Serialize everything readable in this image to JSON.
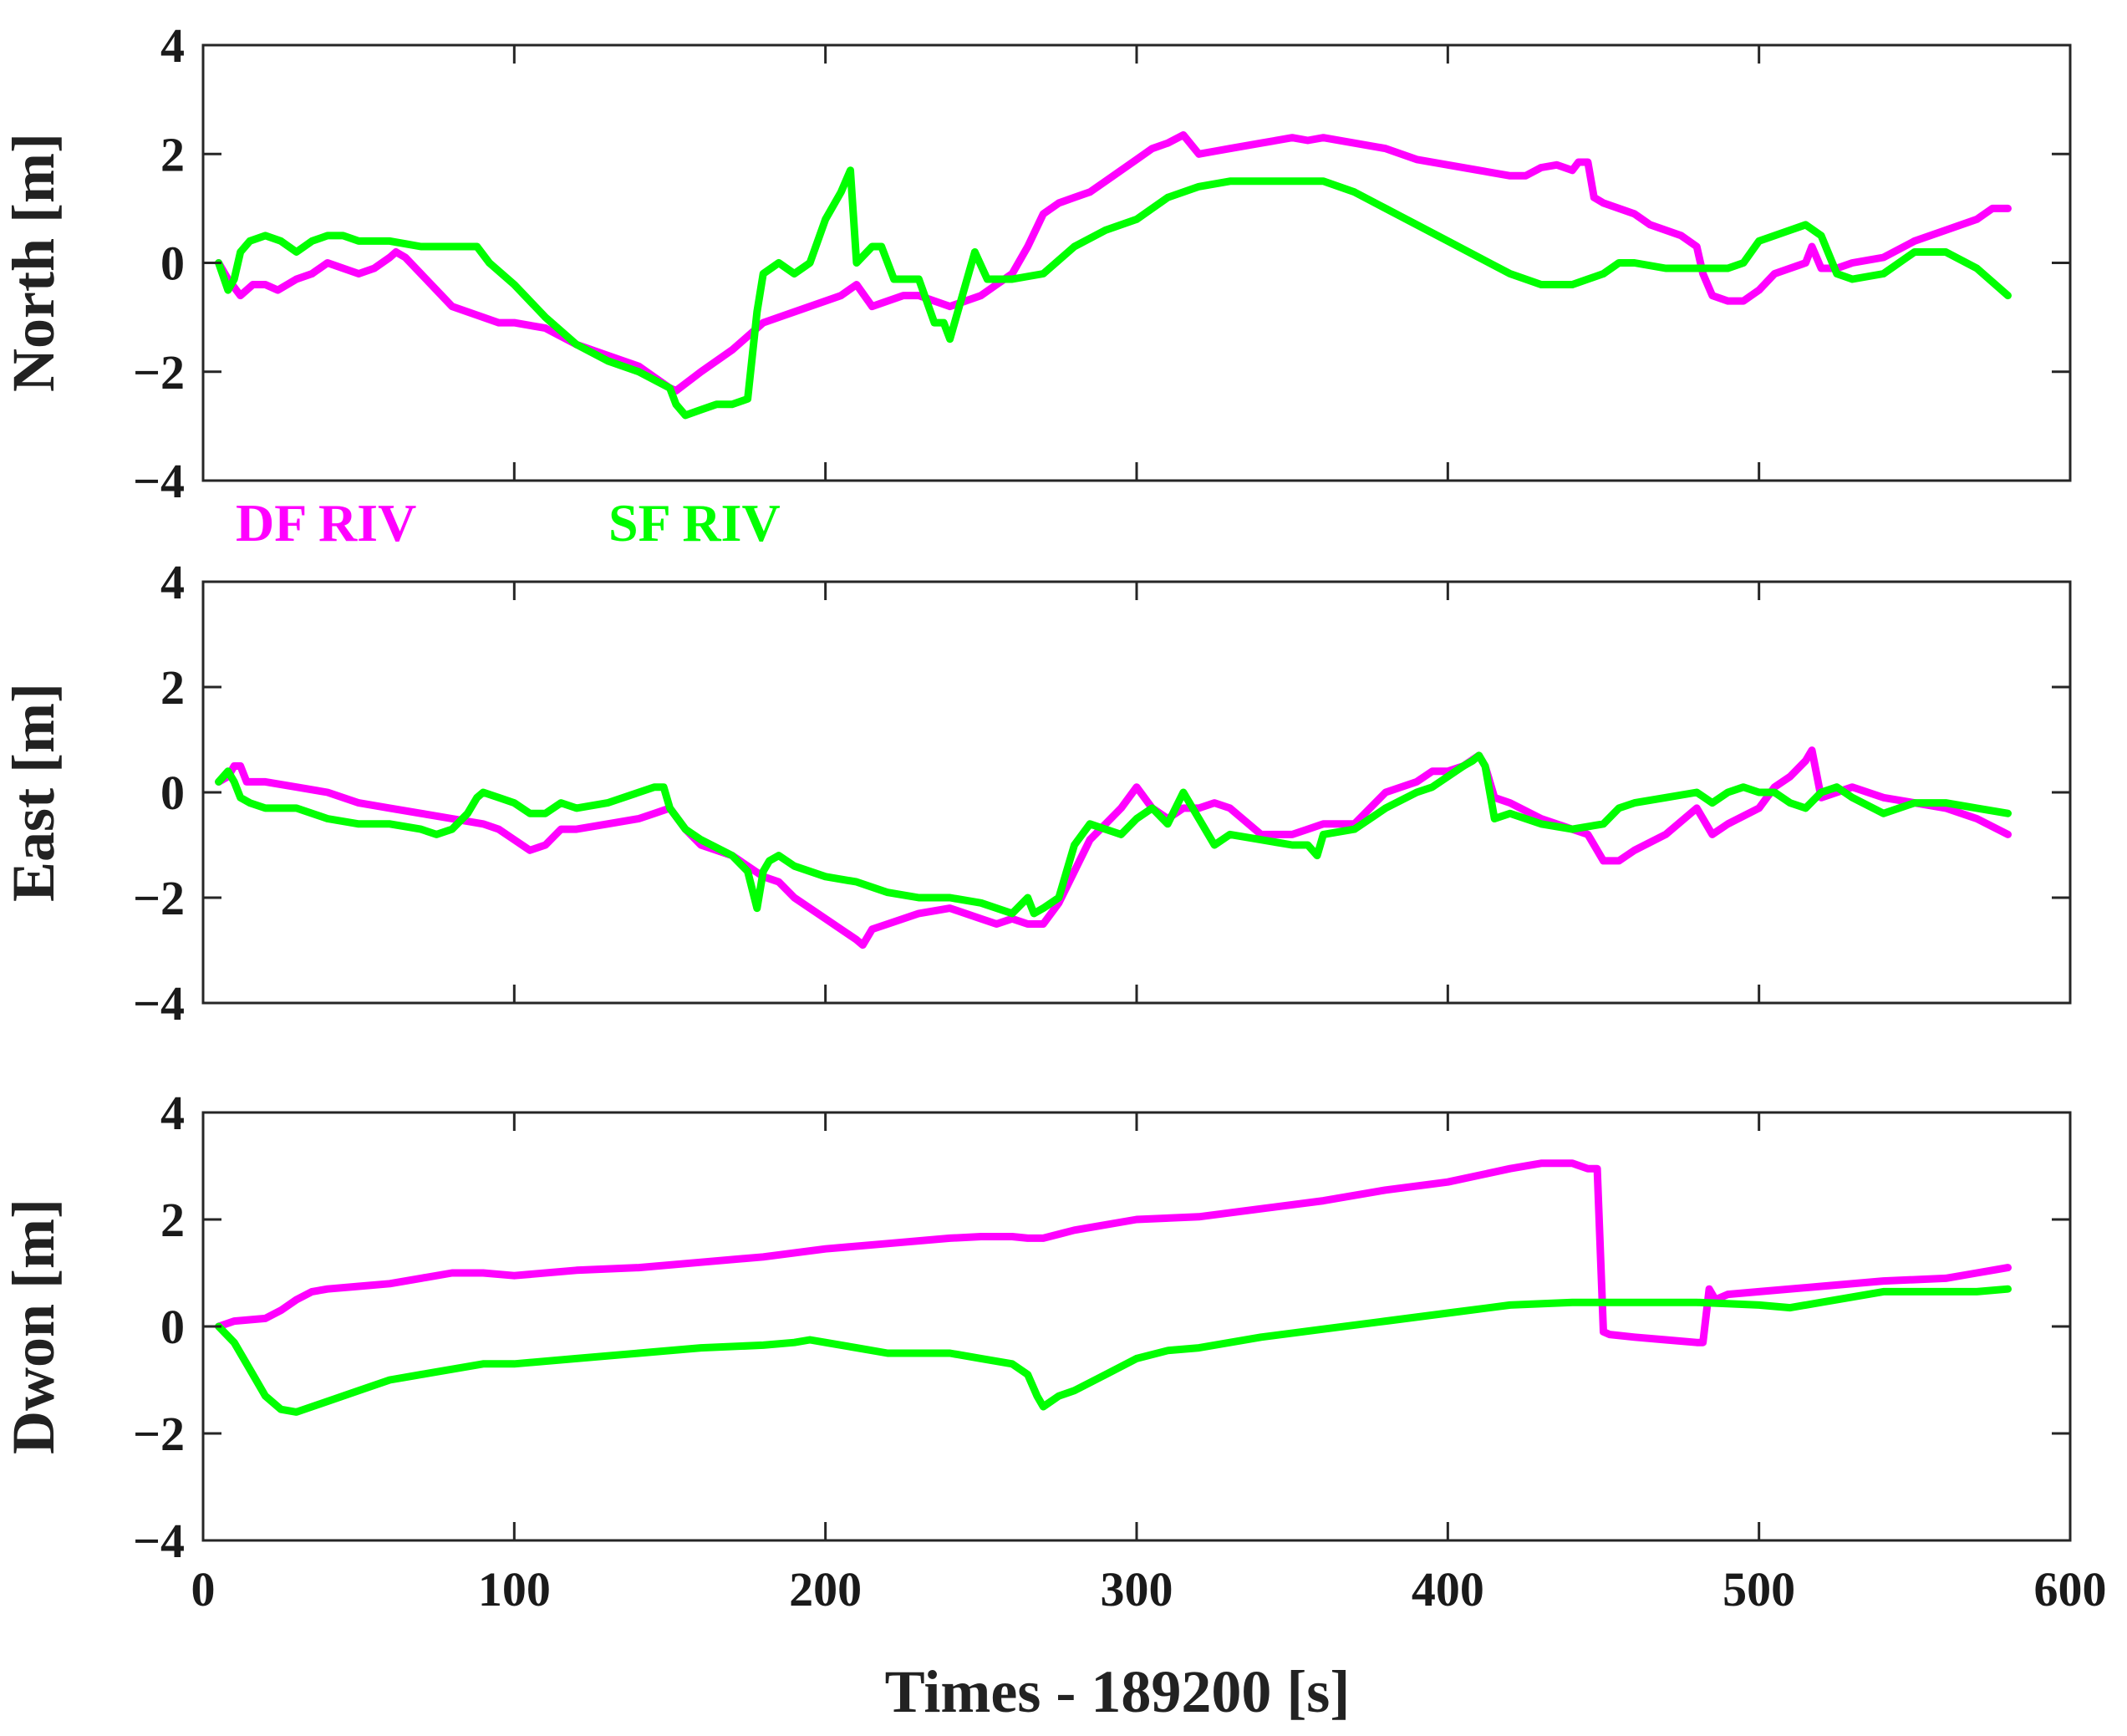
{
  "chart_data": [
    {
      "type": "line",
      "ylabel": "North [m]",
      "xlim": [
        0,
        600
      ],
      "ylim": [
        -4,
        4
      ],
      "yticks": [
        {
          "value": -4,
          "label": "−4"
        },
        {
          "value": -2,
          "label": "−2"
        },
        {
          "value": 0,
          "label": "0"
        },
        {
          "value": 2,
          "label": "2"
        },
        {
          "value": 4,
          "label": "4"
        }
      ],
      "series": [
        {
          "name": "DF RIV",
          "color": "#ff00ff",
          "x": [
            5,
            8,
            12,
            16,
            20,
            24,
            30,
            35,
            40,
            45,
            50,
            55,
            60,
            62,
            65,
            70,
            75,
            80,
            85,
            90,
            95,
            100,
            110,
            120,
            130,
            140,
            145,
            150,
            152,
            160,
            170,
            180,
            190,
            200,
            205,
            210,
            215,
            220,
            225,
            230,
            235,
            240,
            245,
            250,
            255,
            260,
            265,
            270,
            275,
            280,
            285,
            290,
            295,
            300,
            305,
            310,
            315,
            320,
            325,
            330,
            340,
            350,
            355,
            360,
            370,
            380,
            390,
            400,
            410,
            420,
            425,
            430,
            435,
            440,
            442,
            445,
            447,
            450,
            455,
            460,
            465,
            470,
            475,
            480,
            482,
            485,
            490,
            495,
            500,
            505,
            510,
            515,
            517,
            520,
            525,
            530,
            540,
            550,
            560,
            570,
            575,
            580
          ],
          "y": [
            0.0,
            -0.3,
            -0.6,
            -0.4,
            -0.4,
            -0.5,
            -0.3,
            -0.2,
            0.0,
            -0.1,
            -0.2,
            -0.1,
            0.1,
            0.2,
            0.1,
            -0.2,
            -0.5,
            -0.8,
            -0.9,
            -1.0,
            -1.1,
            -1.1,
            -1.2,
            -1.5,
            -1.7,
            -1.9,
            -2.1,
            -2.3,
            -2.35,
            -2.0,
            -1.6,
            -1.1,
            -0.9,
            -0.7,
            -0.6,
            -0.4,
            -0.8,
            -0.7,
            -0.6,
            -0.6,
            -0.7,
            -0.8,
            -0.7,
            -0.6,
            -0.4,
            -0.2,
            0.3,
            0.9,
            1.1,
            1.2,
            1.3,
            1.5,
            1.7,
            1.9,
            2.1,
            2.2,
            2.35,
            2.0,
            2.05,
            2.1,
            2.2,
            2.3,
            2.25,
            2.3,
            2.2,
            2.1,
            1.9,
            1.8,
            1.7,
            1.6,
            1.6,
            1.75,
            1.8,
            1.7,
            1.85,
            1.85,
            1.2,
            1.1,
            1.0,
            0.9,
            0.7,
            0.6,
            0.5,
            0.3,
            -0.2,
            -0.6,
            -0.7,
            -0.7,
            -0.5,
            -0.2,
            -0.1,
            0.0,
            0.3,
            -0.1,
            -0.1,
            0.0,
            0.1,
            0.4,
            0.6,
            0.8,
            1.0,
            1.0
          ]
        },
        {
          "name": "SF RIV",
          "color": "#00ff00",
          "x": [
            5,
            8,
            10,
            12,
            15,
            20,
            25,
            30,
            35,
            40,
            45,
            50,
            55,
            60,
            65,
            70,
            75,
            80,
            85,
            88,
            92,
            100,
            110,
            120,
            130,
            140,
            150,
            152,
            155,
            160,
            165,
            170,
            175,
            178,
            180,
            185,
            190,
            195,
            200,
            205,
            208,
            210,
            215,
            218,
            222,
            230,
            235,
            238,
            240,
            244,
            248,
            252,
            260,
            270,
            280,
            290,
            300,
            310,
            320,
            330,
            340,
            350,
            360,
            370,
            380,
            390,
            400,
            410,
            420,
            430,
            440,
            445,
            450,
            455,
            460,
            470,
            480,
            490,
            495,
            500,
            505,
            510,
            515,
            520,
            525,
            530,
            540,
            550,
            560,
            570,
            580
          ],
          "y": [
            0.0,
            -0.5,
            -0.3,
            0.2,
            0.4,
            0.5,
            0.4,
            0.2,
            0.4,
            0.5,
            0.5,
            0.4,
            0.4,
            0.4,
            0.35,
            0.3,
            0.3,
            0.3,
            0.3,
            0.3,
            0.0,
            -0.4,
            -1.0,
            -1.5,
            -1.8,
            -2.0,
            -2.3,
            -2.6,
            -2.8,
            -2.7,
            -2.6,
            -2.6,
            -2.5,
            -0.9,
            -0.2,
            0.0,
            -0.2,
            0.0,
            0.8,
            1.3,
            1.7,
            0.0,
            0.3,
            0.3,
            -0.3,
            -0.3,
            -1.1,
            -1.1,
            -1.4,
            -0.6,
            0.2,
            -0.3,
            -0.3,
            -0.2,
            0.3,
            0.6,
            0.8,
            1.2,
            1.4,
            1.5,
            1.5,
            1.5,
            1.5,
            1.3,
            1.0,
            0.7,
            0.4,
            0.1,
            -0.2,
            -0.4,
            -0.4,
            -0.3,
            -0.2,
            0.0,
            0.0,
            -0.1,
            -0.1,
            -0.1,
            0.0,
            0.4,
            0.5,
            0.6,
            0.7,
            0.5,
            -0.2,
            -0.3,
            -0.2,
            0.2,
            0.2,
            -0.1,
            -0.6
          ]
        }
      ]
    },
    {
      "type": "line",
      "ylabel": "East [m]",
      "xlim": [
        0,
        600
      ],
      "ylim": [
        -4,
        4
      ],
      "yticks": [
        {
          "value": -4,
          "label": "−4"
        },
        {
          "value": -2,
          "label": "−2"
        },
        {
          "value": 0,
          "label": "0"
        },
        {
          "value": 2,
          "label": "2"
        },
        {
          "value": 4,
          "label": "4"
        }
      ],
      "series": [
        {
          "name": "DF RIV",
          "color": "#ff00ff",
          "x": [
            5,
            8,
            10,
            12,
            14,
            20,
            30,
            40,
            50,
            60,
            70,
            80,
            90,
            95,
            100,
            105,
            110,
            115,
            120,
            130,
            140,
            145,
            150,
            155,
            160,
            170,
            180,
            185,
            190,
            200,
            210,
            212,
            215,
            220,
            230,
            240,
            250,
            255,
            260,
            265,
            270,
            275,
            280,
            285,
            290,
            295,
            300,
            305,
            310,
            315,
            320,
            325,
            330,
            340,
            345,
            350,
            355,
            360,
            370,
            380,
            390,
            395,
            400,
            405,
            410,
            412,
            415,
            420,
            430,
            440,
            445,
            450,
            455,
            460,
            470,
            480,
            485,
            490,
            500,
            505,
            510,
            515,
            517,
            520,
            530,
            540,
            550,
            560,
            570,
            580
          ],
          "y": [
            0.2,
            0.3,
            0.5,
            0.5,
            0.2,
            0.2,
            0.1,
            0.0,
            -0.2,
            -0.3,
            -0.4,
            -0.5,
            -0.6,
            -0.7,
            -0.9,
            -1.1,
            -1.0,
            -0.7,
            -0.7,
            -0.6,
            -0.5,
            -0.4,
            -0.3,
            -0.7,
            -1.0,
            -1.2,
            -1.6,
            -1.7,
            -2.0,
            -2.4,
            -2.8,
            -2.9,
            -2.6,
            -2.5,
            -2.3,
            -2.2,
            -2.4,
            -2.5,
            -2.4,
            -2.5,
            -2.5,
            -2.1,
            -1.5,
            -0.9,
            -0.6,
            -0.3,
            0.1,
            -0.3,
            -0.5,
            -0.3,
            -0.3,
            -0.2,
            -0.3,
            -0.8,
            -0.8,
            -0.8,
            -0.7,
            -0.6,
            -0.6,
            0.0,
            0.2,
            0.4,
            0.4,
            0.5,
            0.7,
            0.5,
            -0.1,
            -0.2,
            -0.5,
            -0.7,
            -0.8,
            -1.3,
            -1.3,
            -1.1,
            -0.8,
            -0.3,
            -0.8,
            -0.6,
            -0.3,
            0.1,
            0.3,
            0.6,
            0.8,
            -0.1,
            0.1,
            -0.1,
            -0.2,
            -0.3,
            -0.5,
            -0.8
          ]
        },
        {
          "name": "SF RIV",
          "color": "#00ff00",
          "x": [
            5,
            8,
            10,
            12,
            15,
            20,
            30,
            40,
            50,
            60,
            70,
            75,
            80,
            85,
            88,
            90,
            95,
            100,
            105,
            110,
            115,
            120,
            130,
            140,
            145,
            148,
            150,
            155,
            160,
            170,
            175,
            178,
            180,
            182,
            185,
            190,
            200,
            210,
            220,
            230,
            240,
            250,
            260,
            265,
            267,
            270,
            275,
            280,
            285,
            290,
            295,
            300,
            305,
            310,
            315,
            320,
            325,
            330,
            340,
            350,
            355,
            358,
            360,
            370,
            380,
            390,
            395,
            400,
            405,
            408,
            410,
            412,
            415,
            420,
            430,
            440,
            450,
            455,
            460,
            470,
            480,
            485,
            490,
            495,
            500,
            505,
            510,
            515,
            520,
            525,
            530,
            540,
            550,
            560,
            570,
            580
          ],
          "y": [
            0.2,
            0.4,
            0.2,
            -0.1,
            -0.2,
            -0.3,
            -0.3,
            -0.5,
            -0.6,
            -0.6,
            -0.7,
            -0.8,
            -0.7,
            -0.4,
            -0.1,
            0.0,
            -0.1,
            -0.2,
            -0.4,
            -0.4,
            -0.2,
            -0.3,
            -0.2,
            0.0,
            0.1,
            0.1,
            -0.3,
            -0.7,
            -0.9,
            -1.2,
            -1.5,
            -2.2,
            -1.5,
            -1.3,
            -1.2,
            -1.4,
            -1.6,
            -1.7,
            -1.9,
            -2.0,
            -2.0,
            -2.1,
            -2.3,
            -2.0,
            -2.3,
            -2.2,
            -2.0,
            -1.0,
            -0.6,
            -0.7,
            -0.8,
            -0.5,
            -0.3,
            -0.6,
            0.0,
            -0.5,
            -1.0,
            -0.8,
            -0.9,
            -1.0,
            -1.0,
            -1.2,
            -0.8,
            -0.7,
            -0.3,
            0.0,
            0.1,
            0.3,
            0.5,
            0.6,
            0.7,
            0.5,
            -0.5,
            -0.4,
            -0.6,
            -0.7,
            -0.6,
            -0.3,
            -0.2,
            -0.1,
            0.0,
            -0.2,
            0.0,
            0.1,
            0.0,
            0.0,
            -0.2,
            -0.3,
            0.0,
            0.1,
            -0.1,
            -0.4,
            -0.2,
            -0.2,
            -0.3,
            -0.4
          ]
        }
      ]
    },
    {
      "type": "line",
      "ylabel": "Dwon [m]",
      "xlabel": "Times - 189200 [s]",
      "xlim": [
        0,
        600
      ],
      "ylim": [
        -4,
        4
      ],
      "xticks": [
        {
          "value": 0,
          "label": "0"
        },
        {
          "value": 100,
          "label": "100"
        },
        {
          "value": 200,
          "label": "200"
        },
        {
          "value": 300,
          "label": "300"
        },
        {
          "value": 400,
          "label": "400"
        },
        {
          "value": 500,
          "label": "500"
        },
        {
          "value": 600,
          "label": "600"
        }
      ],
      "yticks": [
        {
          "value": -4,
          "label": "−4"
        },
        {
          "value": -2,
          "label": "−2"
        },
        {
          "value": 0,
          "label": "0"
        },
        {
          "value": 2,
          "label": "2"
        },
        {
          "value": 4,
          "label": "4"
        }
      ],
      "series": [
        {
          "name": "DF RIV",
          "color": "#ff00ff",
          "x": [
            5,
            10,
            20,
            25,
            30,
            35,
            40,
            50,
            60,
            70,
            80,
            90,
            100,
            120,
            140,
            160,
            180,
            200,
            220,
            240,
            250,
            260,
            265,
            270,
            280,
            300,
            320,
            340,
            360,
            380,
            400,
            420,
            430,
            440,
            445,
            448,
            450,
            452,
            460,
            470,
            480,
            482,
            484,
            486,
            490,
            500,
            520,
            540,
            560,
            570,
            580
          ],
          "y": [
            0.0,
            0.1,
            0.15,
            0.3,
            0.5,
            0.65,
            0.7,
            0.75,
            0.8,
            0.9,
            1.0,
            1.0,
            0.95,
            1.05,
            1.1,
            1.2,
            1.3,
            1.45,
            1.55,
            1.65,
            1.68,
            1.68,
            1.65,
            1.65,
            1.8,
            2.0,
            2.05,
            2.2,
            2.35,
            2.55,
            2.7,
            2.95,
            3.05,
            3.05,
            2.95,
            2.95,
            -0.1,
            -0.15,
            -0.2,
            -0.25,
            -0.3,
            -0.3,
            0.7,
            0.5,
            0.6,
            0.65,
            0.75,
            0.85,
            0.9,
            1.0,
            1.1
          ]
        },
        {
          "name": "SF RIV",
          "color": "#00ff00",
          "x": [
            5,
            10,
            15,
            20,
            25,
            30,
            35,
            40,
            50,
            60,
            70,
            80,
            90,
            100,
            120,
            140,
            160,
            180,
            190,
            195,
            200,
            210,
            220,
            230,
            240,
            250,
            260,
            265,
            268,
            270,
            275,
            280,
            290,
            300,
            310,
            320,
            330,
            340,
            360,
            380,
            400,
            420,
            440,
            460,
            480,
            500,
            510,
            520,
            530,
            540,
            550,
            560,
            570,
            580
          ],
          "y": [
            0.0,
            -0.3,
            -0.8,
            -1.3,
            -1.55,
            -1.6,
            -1.5,
            -1.4,
            -1.2,
            -1.0,
            -0.9,
            -0.8,
            -0.7,
            -0.7,
            -0.6,
            -0.5,
            -0.4,
            -0.35,
            -0.3,
            -0.25,
            -0.3,
            -0.4,
            -0.5,
            -0.5,
            -0.5,
            -0.6,
            -0.7,
            -0.9,
            -1.3,
            -1.5,
            -1.3,
            -1.2,
            -0.9,
            -0.6,
            -0.45,
            -0.4,
            -0.3,
            -0.2,
            -0.05,
            0.1,
            0.25,
            0.4,
            0.45,
            0.45,
            0.45,
            0.4,
            0.35,
            0.45,
            0.55,
            0.65,
            0.65,
            0.65,
            0.65,
            0.7
          ]
        }
      ]
    }
  ],
  "legend": [
    {
      "label": "DF RIV",
      "color": "#ff00ff"
    },
    {
      "label": "SF RIV",
      "color": "#00ff00"
    }
  ]
}
